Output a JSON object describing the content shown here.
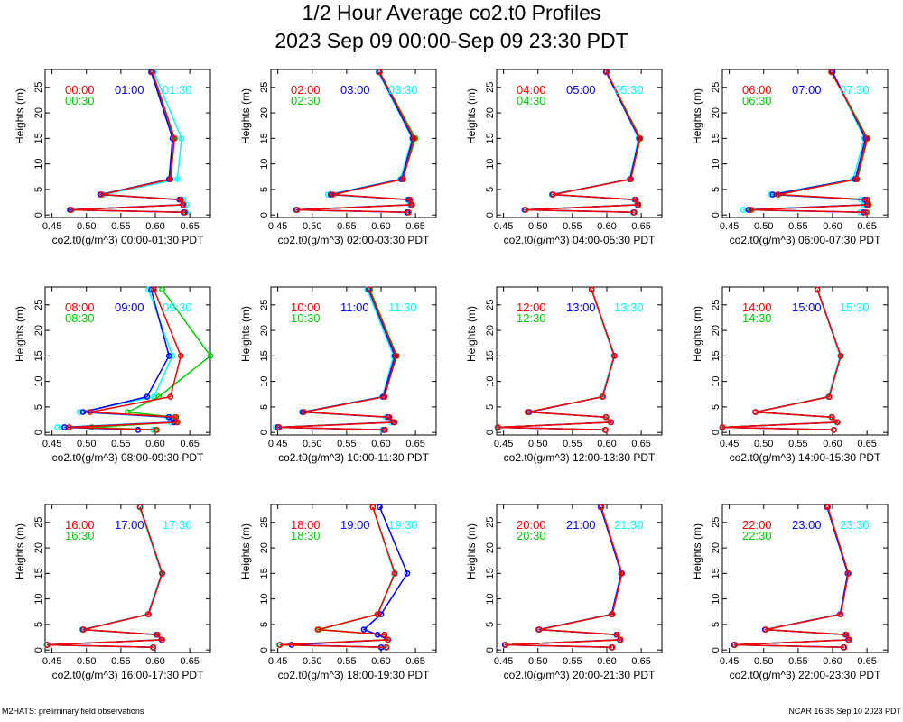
{
  "title": "1/2 Hour Average co2.t0 Profiles",
  "subtitle": "2023 Sep 09 00:00-Sep 09 23:30 PDT",
  "footer_left": "M2HATS: preliminary field observations",
  "footer_right": "NCAR 16:35 Sep 10 2023 PDT",
  "series_colors": [
    "#ff0000",
    "#0000ff",
    "#00cc00",
    "#00ffff"
  ],
  "chart_data": [
    {
      "type": "line",
      "xlabel": "co2.t0(g/m^3) 00:00-01:30 PDT",
      "ylabel": "Heights (m)",
      "xlim": [
        0.44,
        0.68
      ],
      "ylim": [
        -0.5,
        28.5
      ],
      "xticks": [
        "0.45",
        "0.50",
        "0.55",
        "0.60",
        "0.65"
      ],
      "yticks": [
        "0",
        "5",
        "10",
        "15",
        "20",
        "25"
      ],
      "heights": [
        0.5,
        1,
        2,
        3,
        4,
        7,
        15,
        28
      ],
      "series": [
        {
          "name": "00:00",
          "values": [
            0.643,
            0.478,
            0.641,
            0.637,
            0.522,
            0.622,
            0.628,
            0.596
          ]
        },
        {
          "name": "01:00",
          "values": [
            0.641,
            0.476,
            0.64,
            0.635,
            0.52,
            0.62,
            0.625,
            0.594
          ]
        },
        {
          "name": "00:30",
          "values": [
            0.642,
            0.477,
            0.641,
            0.636,
            0.521,
            0.621,
            0.627,
            0.595
          ]
        },
        {
          "name": "01:30",
          "values": [
            0.645,
            0.479,
            0.645,
            0.641,
            0.525,
            0.632,
            0.638,
            0.598
          ]
        }
      ]
    },
    {
      "type": "line",
      "xlabel": "co2.t0(g/m^3) 02:00-03:30 PDT",
      "ylabel": "Heights (m)",
      "xlim": [
        0.44,
        0.68
      ],
      "ylim": [
        -0.5,
        28.5
      ],
      "xticks": [
        "0.45",
        "0.50",
        "0.55",
        "0.60",
        "0.65"
      ],
      "yticks": [
        "0",
        "5",
        "10",
        "15",
        "20",
        "25"
      ],
      "heights": [
        0.5,
        1,
        2,
        3,
        4,
        7,
        15,
        28
      ],
      "series": [
        {
          "name": "02:00",
          "values": [
            0.64,
            0.478,
            0.645,
            0.642,
            0.53,
            0.632,
            0.648,
            0.598
          ]
        },
        {
          "name": "03:00",
          "values": [
            0.638,
            0.477,
            0.644,
            0.64,
            0.527,
            0.63,
            0.646,
            0.597
          ]
        },
        {
          "name": "02:30",
          "values": [
            0.639,
            0.478,
            0.645,
            0.641,
            0.529,
            0.631,
            0.65,
            0.598
          ]
        },
        {
          "name": "03:30",
          "values": [
            0.637,
            0.476,
            0.642,
            0.638,
            0.523,
            0.628,
            0.645,
            0.596
          ]
        }
      ]
    },
    {
      "type": "line",
      "xlabel": "co2.t0(g/m^3) 04:00-05:30 PDT",
      "ylabel": "Heights (m)",
      "xlim": [
        0.44,
        0.68
      ],
      "ylim": [
        -0.5,
        28.5
      ],
      "xticks": [
        "0.45",
        "0.50",
        "0.55",
        "0.60",
        "0.65"
      ],
      "yticks": [
        "0",
        "5",
        "10",
        "15",
        "20",
        "25"
      ],
      "heights": [
        0.5,
        1,
        2,
        3,
        4,
        7,
        15,
        28
      ],
      "series": [
        {
          "name": "04:00",
          "values": [
            0.64,
            0.482,
            0.646,
            0.642,
            0.522,
            0.635,
            0.648,
            0.6
          ]
        },
        {
          "name": "05:00",
          "values": [
            0.639,
            0.481,
            0.645,
            0.641,
            0.521,
            0.634,
            0.647,
            0.599
          ]
        },
        {
          "name": "04:30",
          "values": [
            0.64,
            0.482,
            0.646,
            0.642,
            0.522,
            0.634,
            0.649,
            0.6
          ]
        },
        {
          "name": "05:30",
          "values": [
            0.638,
            0.48,
            0.644,
            0.64,
            0.52,
            0.633,
            0.646,
            0.599
          ]
        }
      ]
    },
    {
      "type": "line",
      "xlabel": "co2.t0(g/m^3) 06:00-07:30 PDT",
      "ylabel": "Heights (m)",
      "xlim": [
        0.44,
        0.68
      ],
      "ylim": [
        -0.5,
        28.5
      ],
      "xticks": [
        "0.45",
        "0.50",
        "0.55",
        "0.60",
        "0.65"
      ],
      "yticks": [
        "0",
        "5",
        "10",
        "15",
        "20",
        "25"
      ],
      "heights": [
        0.5,
        1,
        2,
        3,
        4,
        7,
        15,
        28
      ],
      "series": [
        {
          "name": "06:00",
          "values": [
            0.648,
            0.482,
            0.652,
            0.65,
            0.52,
            0.635,
            0.65,
            0.598
          ]
        },
        {
          "name": "07:00",
          "values": [
            0.645,
            0.478,
            0.65,
            0.647,
            0.513,
            0.633,
            0.648,
            0.6
          ]
        },
        {
          "name": "06:30",
          "values": [
            0.65,
            0.48,
            0.653,
            0.651,
            0.522,
            0.636,
            0.651,
            0.599
          ]
        },
        {
          "name": "07:30",
          "values": [
            0.64,
            0.47,
            0.645,
            0.641,
            0.51,
            0.63,
            0.646,
            0.6
          ]
        }
      ]
    },
    {
      "type": "line",
      "xlabel": "co2.t0(g/m^3) 08:00-09:30 PDT",
      "ylabel": "Heights (m)",
      "xlim": [
        0.44,
        0.68
      ],
      "ylim": [
        -0.5,
        28.5
      ],
      "xticks": [
        "0.45",
        "0.50",
        "0.55",
        "0.60",
        "0.65"
      ],
      "yticks": [
        "0",
        "5",
        "10",
        "15",
        "20",
        "25"
      ],
      "heights": [
        0.5,
        1,
        2,
        3,
        4,
        7,
        15,
        28
      ],
      "series": [
        {
          "name": "08:00",
          "values": [
            0.602,
            0.475,
            0.632,
            0.63,
            0.505,
            0.622,
            0.637,
            0.598
          ]
        },
        {
          "name": "09:00",
          "values": [
            0.575,
            0.468,
            0.627,
            0.62,
            0.495,
            0.588,
            0.62,
            0.594
          ]
        },
        {
          "name": "08:30",
          "values": [
            0.6,
            0.508,
            0.63,
            0.628,
            0.56,
            0.605,
            0.68,
            0.61
          ]
        },
        {
          "name": "09:30",
          "values": [
            0.597,
            0.458,
            0.622,
            0.618,
            0.49,
            0.598,
            0.625,
            0.59
          ]
        }
      ]
    },
    {
      "type": "line",
      "xlabel": "co2.t0(g/m^3) 10:00-11:30 PDT",
      "ylabel": "Heights (m)",
      "xlim": [
        0.44,
        0.68
      ],
      "ylim": [
        -0.5,
        28.5
      ],
      "xticks": [
        "0.45",
        "0.50",
        "0.55",
        "0.60",
        "0.65"
      ],
      "yticks": [
        "0",
        "5",
        "10",
        "15",
        "20",
        "25"
      ],
      "heights": [
        0.5,
        1,
        2,
        3,
        4,
        7,
        15,
        28
      ],
      "series": [
        {
          "name": "10:00",
          "values": [
            0.606,
            0.452,
            0.62,
            0.612,
            0.488,
            0.605,
            0.622,
            0.583
          ]
        },
        {
          "name": "11:00",
          "values": [
            0.604,
            0.45,
            0.618,
            0.61,
            0.486,
            0.603,
            0.62,
            0.582
          ]
        },
        {
          "name": "10:30",
          "values": [
            0.605,
            0.451,
            0.619,
            0.611,
            0.487,
            0.604,
            0.623,
            0.584
          ]
        },
        {
          "name": "11:30",
          "values": [
            0.602,
            0.447,
            0.615,
            0.607,
            0.485,
            0.602,
            0.618,
            0.58
          ]
        }
      ]
    },
    {
      "type": "line",
      "xlabel": "co2.t0(g/m^3) 12:00-13:30 PDT",
      "ylabel": "Heights (m)",
      "xlim": [
        0.44,
        0.68
      ],
      "ylim": [
        -0.5,
        28.5
      ],
      "xticks": [
        "0.45",
        "0.50",
        "0.55",
        "0.60",
        "0.65"
      ],
      "yticks": [
        "0",
        "5",
        "10",
        "15",
        "20",
        "25"
      ],
      "heights": [
        0.5,
        1,
        2,
        3,
        4,
        7,
        15,
        28
      ],
      "series": [
        {
          "name": "12:00",
          "values": [
            0.598,
            0.442,
            0.606,
            0.599,
            0.485,
            0.594,
            0.611,
            0.578
          ]
        },
        {
          "name": "13:00",
          "values": [
            0.598,
            0.442,
            0.606,
            0.599,
            0.487,
            0.594,
            0.611,
            0.578
          ]
        },
        {
          "name": "12:30",
          "values": [
            0.598,
            0.442,
            0.606,
            0.599,
            0.486,
            0.594,
            0.611,
            0.578
          ]
        },
        {
          "name": "13:30",
          "values": [
            0.597,
            0.441,
            0.605,
            0.598,
            0.488,
            0.593,
            0.61,
            0.578
          ]
        }
      ]
    },
    {
      "type": "line",
      "xlabel": "co2.t0(g/m^3) 14:00-15:30 PDT",
      "ylabel": "Heights (m)",
      "xlim": [
        0.44,
        0.68
      ],
      "ylim": [
        -0.5,
        28.5
      ],
      "xticks": [
        "0.45",
        "0.50",
        "0.55",
        "0.60",
        "0.65"
      ],
      "yticks": [
        "0",
        "5",
        "10",
        "15",
        "20",
        "25"
      ],
      "heights": [
        0.5,
        1,
        2,
        3,
        4,
        7,
        15,
        28
      ],
      "series": [
        {
          "name": "14:00",
          "values": [
            0.602,
            0.44,
            0.607,
            0.599,
            0.488,
            0.595,
            0.612,
            0.578
          ]
        },
        {
          "name": "15:00",
          "values": [
            0.602,
            0.44,
            0.607,
            0.599,
            0.488,
            0.595,
            0.612,
            0.578
          ]
        },
        {
          "name": "14:30",
          "values": [
            0.602,
            0.44,
            0.607,
            0.599,
            0.488,
            0.595,
            0.612,
            0.578
          ]
        },
        {
          "name": "15:30",
          "values": [
            0.602,
            0.44,
            0.606,
            0.598,
            0.488,
            0.594,
            0.611,
            0.578
          ]
        }
      ]
    },
    {
      "type": "line",
      "xlabel": "co2.t0(g/m^3) 16:00-17:30 PDT",
      "ylabel": "Heights (m)",
      "xlim": [
        0.44,
        0.68
      ],
      "ylim": [
        -0.5,
        28.5
      ],
      "xticks": [
        "0.45",
        "0.50",
        "0.55",
        "0.60",
        "0.65"
      ],
      "yticks": [
        "0",
        "5",
        "10",
        "15",
        "20",
        "25"
      ],
      "heights": [
        0.5,
        1,
        2,
        3,
        4,
        7,
        15,
        28
      ],
      "series": [
        {
          "name": "16:00",
          "values": [
            0.597,
            0.443,
            0.61,
            0.603,
            0.496,
            0.59,
            0.61,
            0.578
          ]
        },
        {
          "name": "17:00",
          "values": [
            0.597,
            0.443,
            0.609,
            0.602,
            0.495,
            0.59,
            0.61,
            0.578
          ]
        },
        {
          "name": "16:30",
          "values": [
            0.597,
            0.443,
            0.61,
            0.603,
            0.495,
            0.59,
            0.61,
            0.578
          ]
        },
        {
          "name": "17:30",
          "values": [
            0.596,
            0.442,
            0.609,
            0.601,
            0.494,
            0.589,
            0.609,
            0.577
          ]
        }
      ]
    },
    {
      "type": "line",
      "xlabel": "co2.t0(g/m^3) 18:00-19:30 PDT",
      "ylabel": "Heights (m)",
      "xlim": [
        0.44,
        0.68
      ],
      "ylim": [
        -0.5,
        28.5
      ],
      "xticks": [
        "0.45",
        "0.50",
        "0.55",
        "0.60",
        "0.65"
      ],
      "yticks": [
        "0",
        "5",
        "10",
        "15",
        "20",
        "25"
      ],
      "heights": [
        0.5,
        1,
        2,
        3,
        4,
        7,
        15,
        28
      ],
      "series": [
        {
          "name": "18:00",
          "values": [
            0.608,
            0.453,
            0.61,
            0.605,
            0.508,
            0.595,
            0.62,
            0.588
          ]
        },
        {
          "name": "19:00",
          "values": [
            0.6,
            0.47,
            0.61,
            0.595,
            0.575,
            0.6,
            0.638,
            0.598
          ]
        },
        {
          "name": "18:30",
          "values": [
            0.608,
            0.453,
            0.61,
            0.605,
            0.51,
            0.595,
            0.62,
            0.588
          ]
        },
        {
          "name": "19:30",
          "values": [
            0.606,
            0.452,
            0.611,
            0.605,
            0.51,
            0.596,
            0.619,
            0.588
          ]
        }
      ]
    },
    {
      "type": "line",
      "xlabel": "co2.t0(g/m^3) 20:00-21:30 PDT",
      "ylabel": "Heights (m)",
      "xlim": [
        0.44,
        0.68
      ],
      "ylim": [
        -0.5,
        28.5
      ],
      "xticks": [
        "0.45",
        "0.50",
        "0.55",
        "0.60",
        "0.65"
      ],
      "yticks": [
        "0",
        "5",
        "10",
        "15",
        "20",
        "25"
      ],
      "heights": [
        0.5,
        1,
        2,
        3,
        4,
        7,
        15,
        28
      ],
      "series": [
        {
          "name": "20:00",
          "values": [
            0.608,
            0.453,
            0.62,
            0.615,
            0.502,
            0.608,
            0.622,
            0.592
          ]
        },
        {
          "name": "21:00",
          "values": [
            0.607,
            0.452,
            0.619,
            0.614,
            0.501,
            0.607,
            0.621,
            0.591
          ]
        },
        {
          "name": "20:30",
          "values": [
            0.608,
            0.453,
            0.62,
            0.615,
            0.502,
            0.608,
            0.622,
            0.592
          ]
        },
        {
          "name": "21:30",
          "values": [
            0.607,
            0.452,
            0.619,
            0.614,
            0.501,
            0.607,
            0.621,
            0.591
          ]
        }
      ]
    },
    {
      "type": "line",
      "xlabel": "co2.t0(g/m^3) 22:00-23:30 PDT",
      "ylabel": "Heights (m)",
      "xlim": [
        0.44,
        0.68
      ],
      "ylim": [
        -0.5,
        28.5
      ],
      "xticks": [
        "0.45",
        "0.50",
        "0.55",
        "0.60",
        "0.65"
      ],
      "yticks": [
        "0",
        "5",
        "10",
        "15",
        "20",
        "25"
      ],
      "heights": [
        0.5,
        1,
        2,
        3,
        4,
        7,
        15,
        28
      ],
      "series": [
        {
          "name": "22:00",
          "values": [
            0.617,
            0.458,
            0.624,
            0.62,
            0.503,
            0.612,
            0.623,
            0.593
          ]
        },
        {
          "name": "23:00",
          "values": [
            0.616,
            0.457,
            0.623,
            0.619,
            0.502,
            0.611,
            0.622,
            0.592
          ]
        },
        {
          "name": "22:30",
          "values": [
            0.617,
            0.458,
            0.624,
            0.62,
            0.503,
            0.612,
            0.623,
            0.593
          ]
        },
        {
          "name": "23:30",
          "values": [
            0.616,
            0.457,
            0.623,
            0.619,
            0.502,
            0.611,
            0.622,
            0.592
          ]
        }
      ]
    }
  ]
}
